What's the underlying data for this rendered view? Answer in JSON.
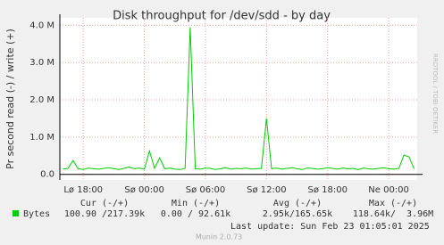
{
  "chart_data": {
    "type": "line",
    "title": "Disk throughput for /dev/sdd - by day",
    "y_label": "Pr second read (-) / write (+)",
    "side_label": "RRDTOOL / TOBI OETIKER",
    "x": [
      16,
      16.5,
      17,
      17.5,
      18,
      18.5,
      19,
      19.5,
      20,
      20.5,
      21,
      21.5,
      22,
      22.5,
      23,
      23.5,
      24,
      24.5,
      25,
      25.5,
      26,
      26.5,
      27,
      27.5,
      28,
      28.5,
      29,
      29.5,
      30,
      30.5,
      31,
      31.5,
      32,
      32.5,
      33,
      33.5,
      34,
      34.5,
      35,
      35.5,
      36,
      36.5,
      37,
      37.5,
      38,
      38.5,
      39,
      39.5,
      40,
      40.5,
      41,
      41.5,
      42,
      42.5,
      43,
      43.5,
      44,
      44.5,
      45,
      45.5,
      46,
      46.5,
      47,
      47.5,
      48,
      48.5,
      49,
      49.5,
      50,
      50.5
    ],
    "xlim": [
      15.7,
      50.8
    ],
    "xticks": [
      {
        "value": 18,
        "label": "Lø 18:00"
      },
      {
        "value": 24,
        "label": "Sø 00:00"
      },
      {
        "value": 30,
        "label": "Sø 06:00"
      },
      {
        "value": 36,
        "label": "Sø 12:00"
      },
      {
        "value": 42,
        "label": "Sø 18:00"
      },
      {
        "value": 48,
        "label": "Ne 00:00"
      }
    ],
    "ylim": [
      -150000,
      4200000
    ],
    "yticks": [
      {
        "value": 0,
        "label": "0.0"
      },
      {
        "value": 1000000,
        "label": "1.0 M"
      },
      {
        "value": 2000000,
        "label": "2.0 M"
      },
      {
        "value": 3000000,
        "label": "3.0 M"
      },
      {
        "value": 4000000,
        "label": "4.0 M"
      }
    ],
    "grid": true,
    "series": [
      {
        "name": "Bytes",
        "color": "#00cc00",
        "values": [
          140000,
          160000,
          370000,
          150000,
          130000,
          170000,
          150000,
          140000,
          160000,
          180000,
          150000,
          130000,
          160000,
          200000,
          150000,
          170000,
          140000,
          630000,
          160000,
          440000,
          150000,
          170000,
          140000,
          130000,
          160000,
          3950000,
          150000,
          140000,
          170000,
          160000,
          130000,
          150000,
          180000,
          140000,
          160000,
          150000,
          170000,
          140000,
          150000,
          160000,
          1500000,
          150000,
          170000,
          140000,
          160000,
          180000,
          150000,
          130000,
          170000,
          160000,
          140000,
          150000,
          180000,
          160000,
          140000,
          170000,
          150000,
          160000,
          130000,
          170000,
          150000,
          140000,
          160000,
          180000,
          150000,
          140000,
          160000,
          520000,
          470000,
          150000
        ]
      }
    ],
    "summary": {
      "headers": [
        "Cur (-/+)",
        "Min (-/+)",
        "Avg (-/+)",
        "Max (-/+)"
      ],
      "row": [
        "100.90 /217.39k",
        "0.00 / 92.61k",
        "2.95k/165.65k",
        "118.64k/  3.96M"
      ]
    },
    "last_update": "Last update: Sun Feb 23 01:05:01 2025",
    "footer": "Munin 2.0.73"
  }
}
